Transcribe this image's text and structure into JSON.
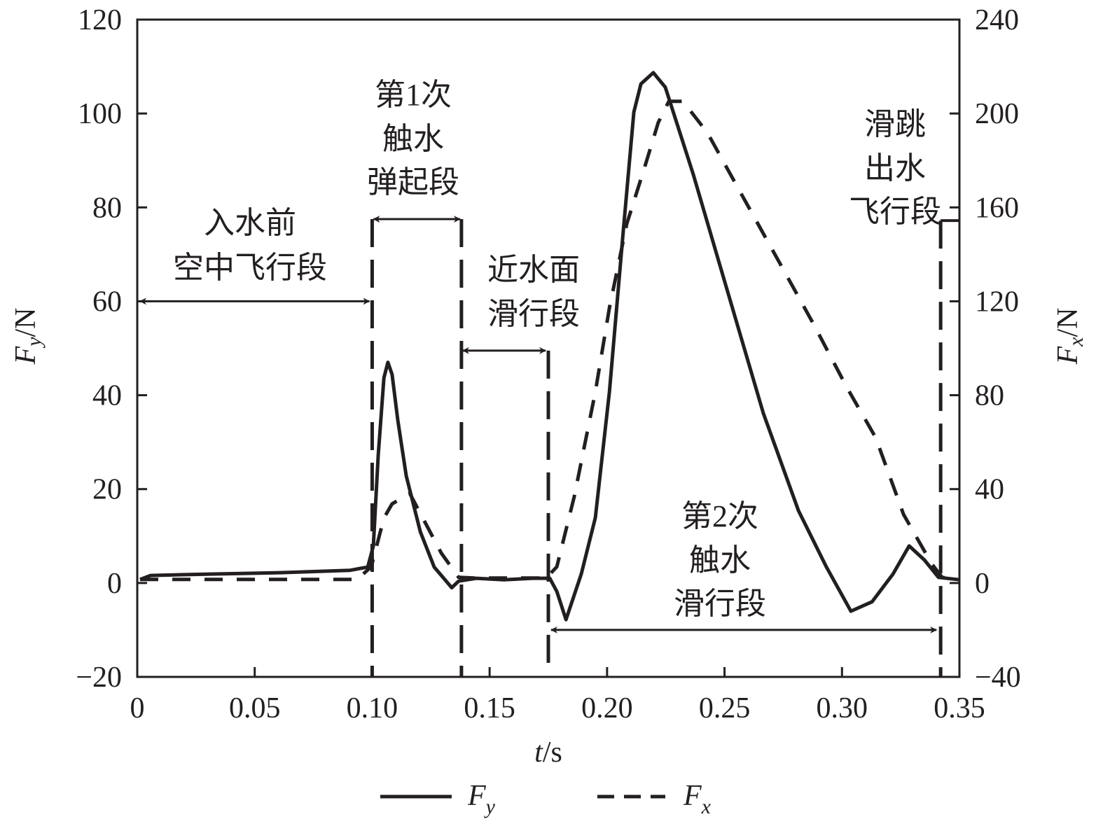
{
  "chart_data": {
    "type": "line",
    "title": "",
    "xlabel": {
      "var": "t",
      "unit": "/s"
    },
    "ylabel_left": {
      "var": "F",
      "sub": "y",
      "unit": "/N"
    },
    "ylabel_right": {
      "var": "F",
      "sub": "x",
      "unit": "/N"
    },
    "xlim": [
      0,
      0.35
    ],
    "ylim_left": [
      -20,
      120
    ],
    "ylim_right": [
      -40,
      240
    ],
    "x_ticks": [
      "0",
      "0.05",
      "0.10",
      "0.15",
      "0.20",
      "0.25",
      "0.30",
      "0.35"
    ],
    "x_tick_values": [
      0,
      0.05,
      0.1,
      0.15,
      0.2,
      0.25,
      0.3,
      0.35
    ],
    "y_ticks_left": [
      "−20",
      "0",
      "20",
      "40",
      "60",
      "80",
      "100",
      "120"
    ],
    "y_tick_values_left": [
      -20,
      0,
      20,
      40,
      60,
      80,
      100,
      120
    ],
    "y_ticks_right": [
      "−40",
      "0",
      "40",
      "80",
      "120",
      "160",
      "200",
      "240"
    ],
    "y_tick_values_right": [
      -40,
      0,
      40,
      80,
      120,
      160,
      200,
      240
    ],
    "grid": false,
    "legend_position": "bottom-center",
    "series": [
      {
        "name": "Fy",
        "label_var": "F",
        "label_sub": "y",
        "axis": "left",
        "style": "solid",
        "x": [
          0.0012,
          0.0057,
          0.031,
          0.0608,
          0.0906,
          0.0981,
          0.1005,
          0.1026,
          0.105,
          0.1067,
          0.1085,
          0.1109,
          0.1145,
          0.1205,
          0.1264,
          0.1339,
          0.1368,
          0.1443,
          0.1562,
          0.1682,
          0.1756,
          0.1786,
          0.1825,
          0.189,
          0.195,
          0.201,
          0.2069,
          0.2114,
          0.2144,
          0.2197,
          0.2248,
          0.2367,
          0.2516,
          0.2665,
          0.2815,
          0.2934,
          0.3038,
          0.3128,
          0.3217,
          0.3286,
          0.3351,
          0.3411,
          0.35
        ],
        "y": [
          0.75,
          1.6,
          1.9,
          2.2,
          2.7,
          3.4,
          7.9,
          27.3,
          43.7,
          47,
          44.4,
          34.7,
          22.8,
          10.9,
          3.4,
          -1.0,
          0.4,
          1.0,
          0.7,
          1.0,
          1.0,
          -1.8,
          -7.8,
          1.9,
          13.9,
          40.7,
          75,
          100.3,
          106.3,
          108.7,
          105.6,
          87,
          61.6,
          36.2,
          15.4,
          3.4,
          -6.0,
          -4.0,
          1.9,
          7.9,
          4.9,
          1.2,
          0.7
        ]
      },
      {
        "name": "Fx",
        "label_var": "F",
        "label_sub": "x",
        "axis": "right",
        "style": "dashed",
        "x": [
          0.0012,
          0.0936,
          0.0996,
          0.105,
          0.1085,
          0.116,
          0.1294,
          0.1368,
          0.1443,
          0.1741,
          0.1786,
          0.186,
          0.195,
          0.201,
          0.2084,
          0.2159,
          0.2218,
          0.2263,
          0.2323,
          0.2427,
          0.2576,
          0.2725,
          0.2874,
          0.3023,
          0.3143,
          0.3262,
          0.3381,
          0.3426,
          0.35
        ],
        "y": [
          1.5,
          1.5,
          6.9,
          27.7,
          33.7,
          38.2,
          12.8,
          2.4,
          2.1,
          2.1,
          6.9,
          36.7,
          81.4,
          117.2,
          153,
          176.8,
          196.2,
          205.2,
          205.2,
          191.8,
          164.9,
          138.1,
          111.2,
          82.9,
          62,
          29.2,
          8.3,
          2.4,
          1.5
        ]
      }
    ],
    "phase_boundaries_t": [
      0.1,
      0.138,
      0.175,
      0.342
    ],
    "annotations": [
      {
        "lines": [
          "入水前",
          "空中飞行段"
        ],
        "span_t": [
          0,
          0.1
        ],
        "arrow_fy": 60
      },
      {
        "lines": [
          "第1次",
          "触水",
          "弹起段"
        ],
        "span_t": [
          0.1,
          0.138
        ],
        "arrow_fy": 77.5
      },
      {
        "lines": [
          "近水面",
          "滑行段"
        ],
        "span_t": [
          0.138,
          0.175
        ],
        "arrow_fy": 49.5
      },
      {
        "lines": [
          "第2次",
          "触水",
          "滑行段"
        ],
        "span_t": [
          0.175,
          0.342
        ],
        "arrow_fy": -10
      },
      {
        "lines": [
          "滑跳",
          "出水",
          "飞行段"
        ],
        "span_t": [
          0.342,
          0.35
        ],
        "arrow_fy": null
      }
    ]
  }
}
